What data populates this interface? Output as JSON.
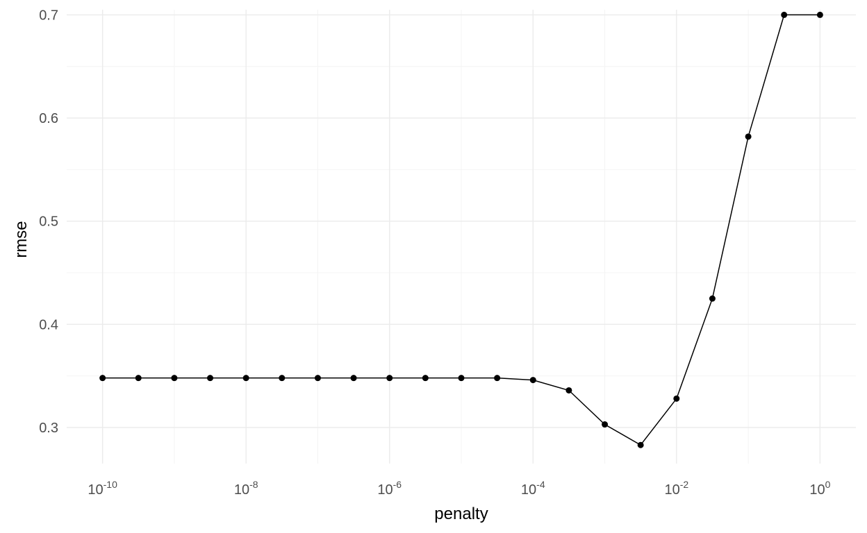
{
  "chart_data": {
    "type": "line",
    "title": "",
    "xlabel": "penalty",
    "ylabel": "rmse",
    "x_scale": "log10",
    "xlim": [
      1e-10,
      1
    ],
    "ylim": [
      0.265,
      0.705
    ],
    "x_ticks": [
      {
        "value": 1e-10,
        "base": "10",
        "exp": "-10"
      },
      {
        "value": 1e-08,
        "base": "10",
        "exp": "-8"
      },
      {
        "value": 1e-06,
        "base": "10",
        "exp": "-6"
      },
      {
        "value": 0.0001,
        "base": "10",
        "exp": "-4"
      },
      {
        "value": 0.01,
        "base": "10",
        "exp": "-2"
      },
      {
        "value": 1,
        "base": "10",
        "exp": "0"
      }
    ],
    "y_ticks": [
      "0.3",
      "0.4",
      "0.5",
      "0.6",
      "0.7"
    ],
    "grid": true,
    "legend": "none",
    "color": "#000000",
    "series": [
      {
        "x": [
          1e-10,
          3.16e-10,
          1e-09,
          3.16e-09,
          1e-08,
          3.16e-08,
          1e-07,
          3.16e-07,
          1e-06,
          3.16e-06,
          1e-05,
          3.16e-05,
          0.0001,
          0.000316,
          0.001,
          0.00316,
          0.01,
          0.0316,
          0.1,
          0.316,
          1
        ],
        "y": [
          0.348,
          0.348,
          0.348,
          0.348,
          0.348,
          0.348,
          0.348,
          0.348,
          0.348,
          0.348,
          0.348,
          0.348,
          0.346,
          0.336,
          0.303,
          0.283,
          0.328,
          0.425,
          0.582,
          0.7,
          0.7
        ]
      }
    ]
  }
}
